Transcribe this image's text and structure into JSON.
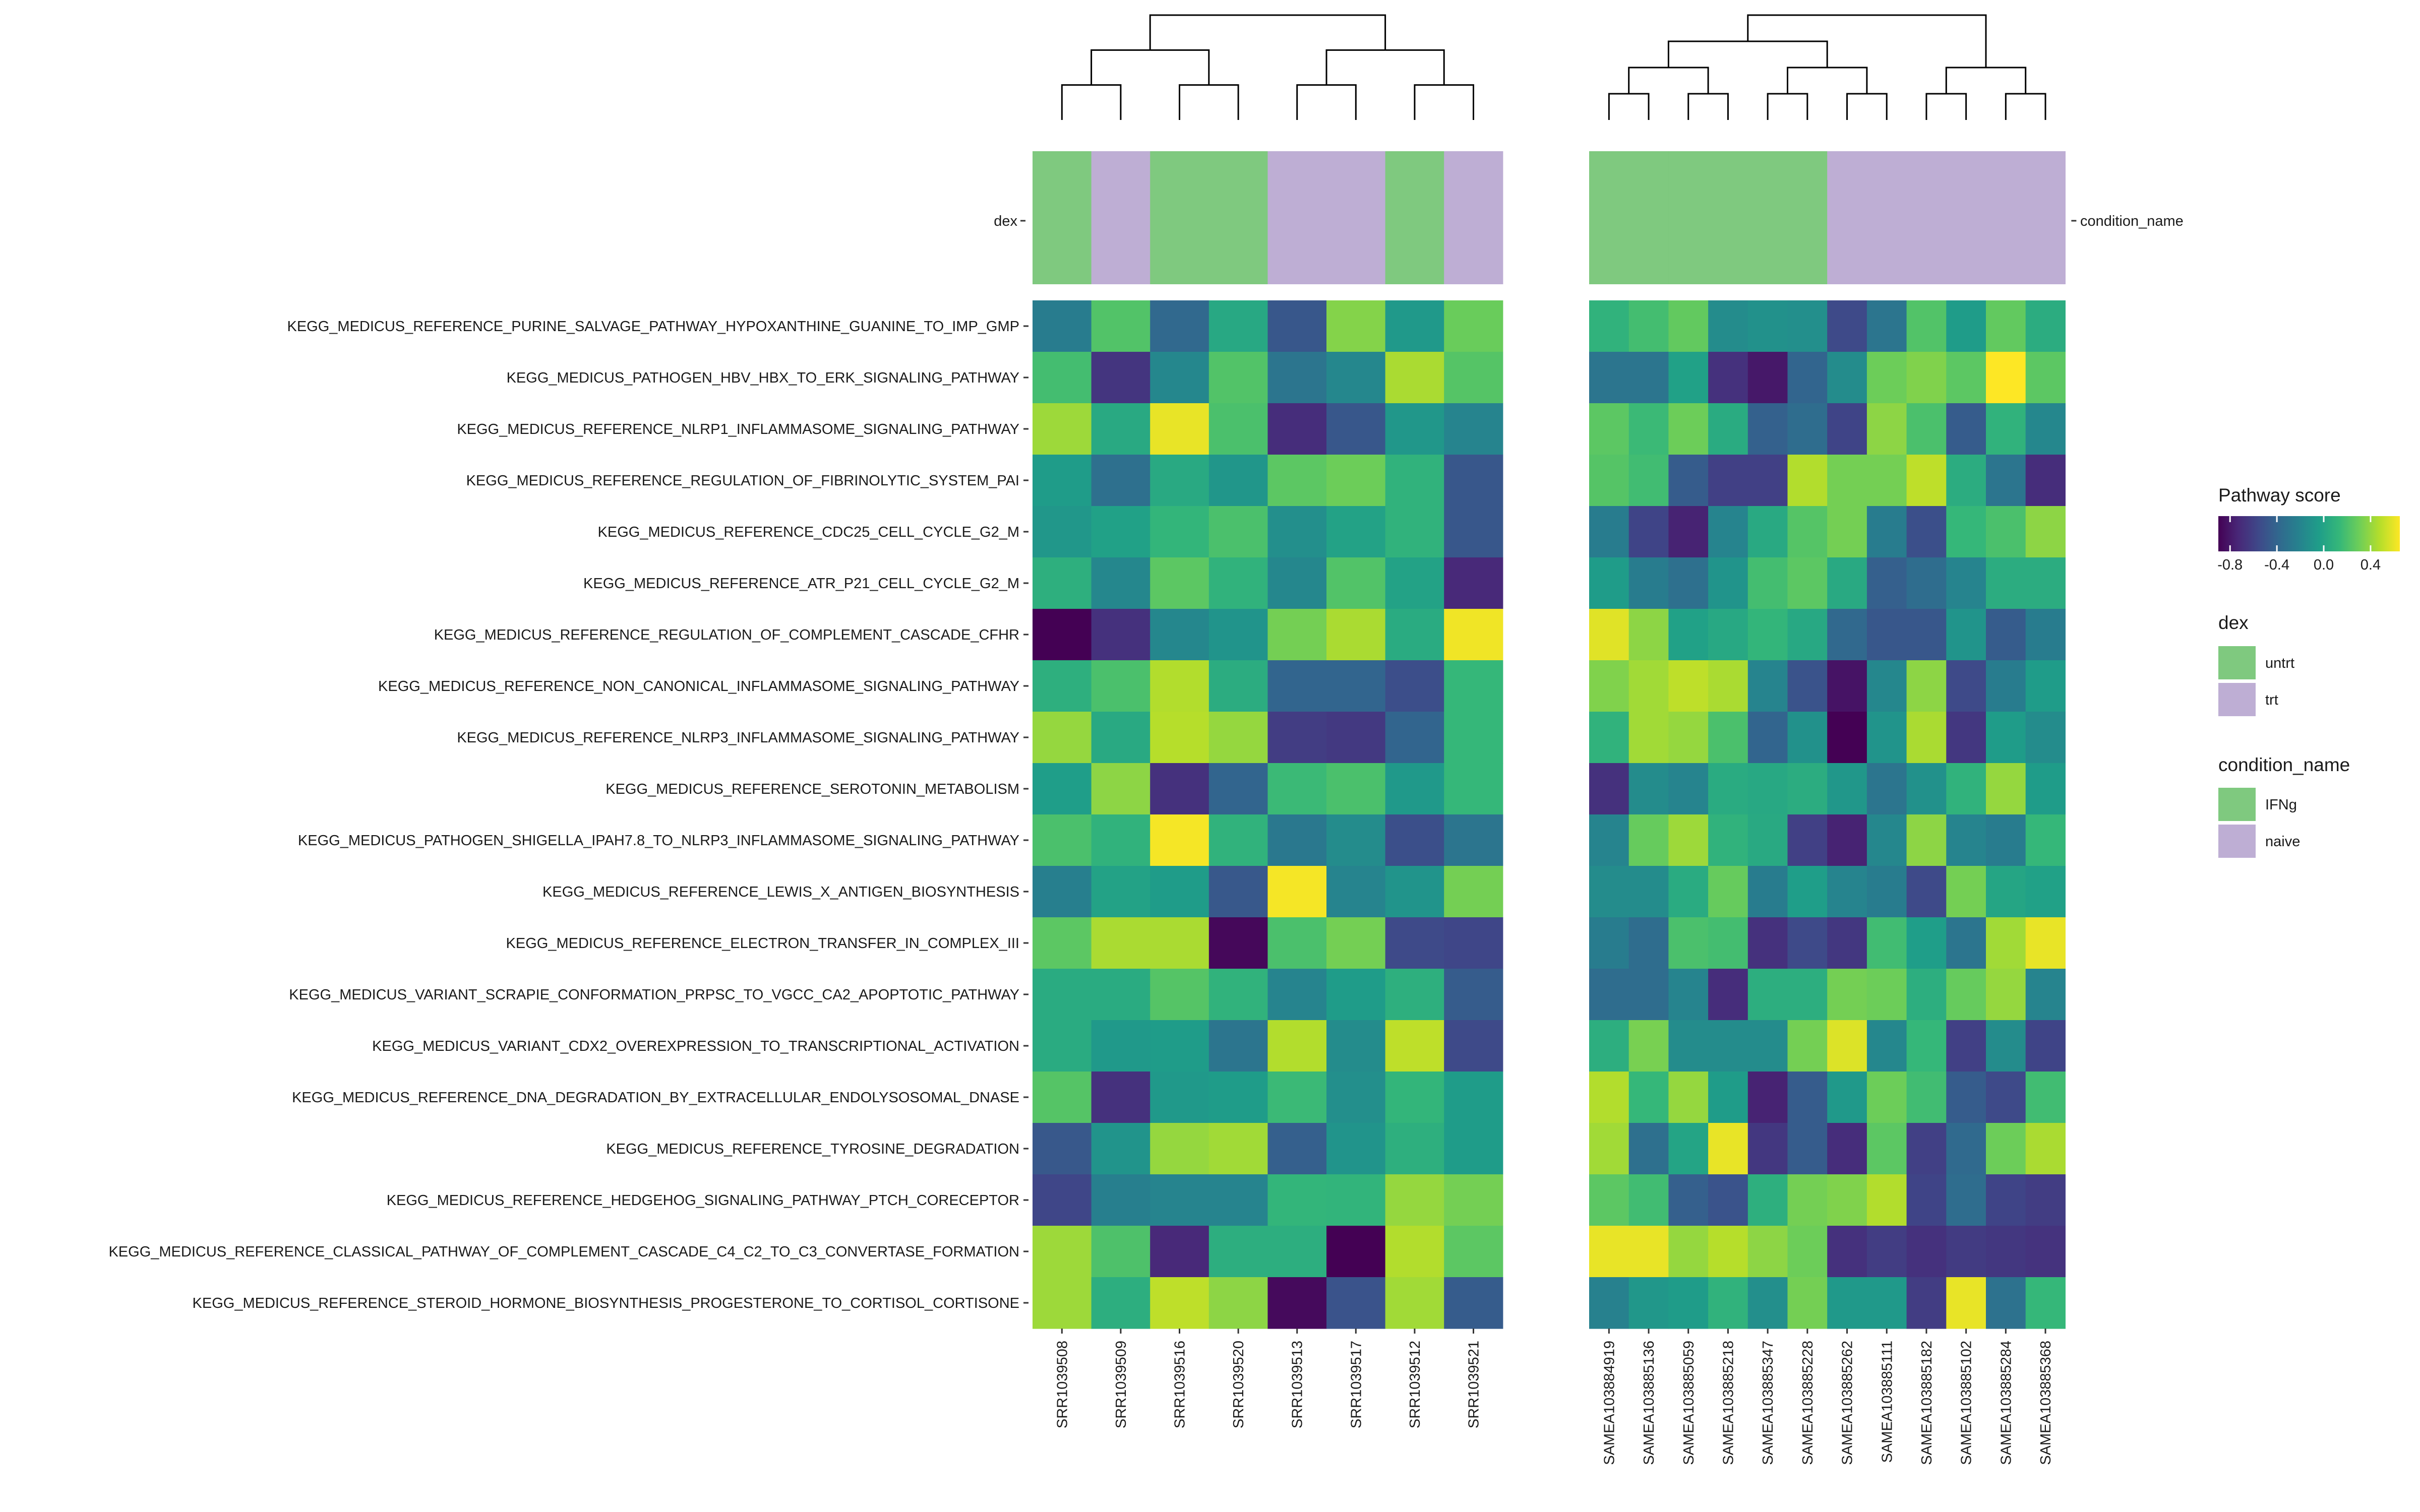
{
  "chart_data": {
    "type": "heatmap",
    "title": "",
    "value_name": "Pathway score",
    "color_scale": {
      "palette": "viridis",
      "min": -0.9,
      "max": 0.65,
      "colors": [
        "#440154",
        "#482878",
        "#3e4989",
        "#31688e",
        "#26828e",
        "#1f9e89",
        "#35b779",
        "#6ece58",
        "#b5de2b",
        "#fde725"
      ],
      "ticks": [
        -0.8,
        -0.4,
        0.0,
        0.4
      ],
      "tick_labels": [
        "-0.8",
        "-0.4",
        "0.0",
        "0.4"
      ]
    },
    "rows": [
      "KEGG_MEDICUS_REFERENCE_PURINE_SALVAGE_PATHWAY_HYPOXANTHINE_GUANINE_TO_IMP_GMP",
      "KEGG_MEDICUS_PATHOGEN_HBV_HBX_TO_ERK_SIGNALING_PATHWAY",
      "KEGG_MEDICUS_REFERENCE_NLRP1_INFLAMMASOME_SIGNALING_PATHWAY",
      "KEGG_MEDICUS_REFERENCE_REGULATION_OF_FIBRINOLYTIC_SYSTEM_PAI",
      "KEGG_MEDICUS_REFERENCE_CDC25_CELL_CYCLE_G2_M",
      "KEGG_MEDICUS_REFERENCE_ATR_P21_CELL_CYCLE_G2_M",
      "KEGG_MEDICUS_REFERENCE_REGULATION_OF_COMPLEMENT_CASCADE_CFHR",
      "KEGG_MEDICUS_REFERENCE_NON_CANONICAL_INFLAMMASOME_SIGNALING_PATHWAY",
      "KEGG_MEDICUS_REFERENCE_NLRP3_INFLAMMASOME_SIGNALING_PATHWAY",
      "KEGG_MEDICUS_REFERENCE_SEROTONIN_METABOLISM",
      "KEGG_MEDICUS_PATHOGEN_SHIGELLA_IPAH7.8_TO_NLRP3_INFLAMMASOME_SIGNALING_PATHWAY",
      "KEGG_MEDICUS_REFERENCE_LEWIS_X_ANTIGEN_BIOSYNTHESIS",
      "KEGG_MEDICUS_REFERENCE_ELECTRON_TRANSFER_IN_COMPLEX_III",
      "KEGG_MEDICUS_VARIANT_SCRAPIE_CONFORMATION_PRPSC_TO_VGCC_CA2_APOPTOTIC_PATHWAY",
      "KEGG_MEDICUS_VARIANT_CDX2_OVEREXPRESSION_TO_TRANSCRIPTIONAL_ACTIVATION",
      "KEGG_MEDICUS_REFERENCE_DNA_DEGRADATION_BY_EXTRACELLULAR_ENDOLYSOSOMAL_DNASE",
      "KEGG_MEDICUS_REFERENCE_TYROSINE_DEGRADATION",
      "KEGG_MEDICUS_REFERENCE_HEDGEHOG_SIGNALING_PATHWAY_PTCH_CORECEPTOR",
      "KEGG_MEDICUS_REFERENCE_CLASSICAL_PATHWAY_OF_COMPLEMENT_CASCADE_C4_C2_TO_C3_CONVERTASE_FORMATION",
      "KEGG_MEDICUS_REFERENCE_STEROID_HORMONE_BIOSYNTHESIS_PROGESTERONE_TO_CORTISOL_CORTISONE"
    ],
    "panels": [
      {
        "annotation_name": "dex",
        "columns": [
          "SRR1039508",
          "SRR1039509",
          "SRR1039516",
          "SRR1039520",
          "SRR1039513",
          "SRR1039517",
          "SRR1039512",
          "SRR1039521"
        ],
        "annotation_values": [
          "untrt",
          "trt",
          "untrt",
          "untrt",
          "trt",
          "trt",
          "untrt",
          "trt"
        ],
        "values": [
          [
            -0.25,
            0.22,
            -0.38,
            0.03,
            -0.48,
            0.36,
            -0.07,
            0.29
          ],
          [
            0.18,
            -0.66,
            -0.18,
            0.22,
            -0.3,
            -0.18,
            0.45,
            0.23
          ],
          [
            0.42,
            0.04,
            0.6,
            0.2,
            -0.7,
            -0.48,
            -0.08,
            -0.2
          ],
          [
            -0.05,
            -0.33,
            0.04,
            -0.09,
            0.25,
            0.3,
            0.1,
            -0.48
          ],
          [
            -0.08,
            -0.02,
            0.12,
            0.2,
            -0.13,
            -0.01,
            0.1,
            -0.48
          ],
          [
            0.08,
            -0.18,
            0.25,
            0.1,
            -0.18,
            0.22,
            -0.01,
            -0.72
          ],
          [
            -0.9,
            -0.68,
            -0.18,
            -0.1,
            0.32,
            0.45,
            0.05,
            0.62
          ],
          [
            0.08,
            0.2,
            0.47,
            0.06,
            -0.4,
            -0.4,
            -0.53,
            0.13
          ],
          [
            0.4,
            0.04,
            0.48,
            0.4,
            -0.62,
            -0.64,
            -0.4,
            0.13
          ],
          [
            -0.04,
            0.38,
            -0.68,
            -0.4,
            0.15,
            0.2,
            -0.07,
            0.13
          ],
          [
            0.2,
            0.1,
            0.63,
            0.1,
            -0.28,
            -0.15,
            -0.52,
            -0.3
          ],
          [
            -0.23,
            -0.01,
            -0.05,
            -0.47,
            0.63,
            -0.2,
            -0.1,
            0.32
          ],
          [
            0.25,
            0.45,
            0.45,
            -0.87,
            0.2,
            0.32,
            -0.55,
            -0.57
          ],
          [
            0.05,
            0.05,
            0.23,
            0.1,
            -0.2,
            -0.05,
            0.08,
            -0.45
          ],
          [
            0.05,
            -0.07,
            -0.05,
            -0.3,
            0.47,
            -0.15,
            0.5,
            -0.55
          ],
          [
            0.23,
            -0.68,
            -0.07,
            -0.05,
            0.15,
            -0.13,
            0.12,
            -0.05
          ],
          [
            -0.47,
            -0.1,
            0.4,
            0.43,
            -0.43,
            -0.1,
            0.08,
            -0.05
          ],
          [
            -0.57,
            -0.23,
            -0.2,
            -0.2,
            0.12,
            0.11,
            0.4,
            0.32
          ],
          [
            0.42,
            0.21,
            -0.72,
            0.07,
            0.07,
            -0.9,
            0.47,
            0.25
          ],
          [
            0.42,
            0.07,
            0.5,
            0.38,
            -0.86,
            -0.5,
            0.43,
            -0.45
          ]
        ]
      },
      {
        "annotation_name": "condition_name",
        "columns": [
          "SAMEA103884919",
          "SAMEA103885136",
          "SAMEA103885059",
          "SAMEA103885218",
          "SAMEA103885347",
          "SAMEA103885228",
          "SAMEA103885262",
          "SAMEA103885111",
          "SAMEA103885182",
          "SAMEA103885102",
          "SAMEA103885284",
          "SAMEA103885368"
        ],
        "annotation_values": [
          "IFNg",
          "IFNg",
          "IFNg",
          "IFNg",
          "IFNg",
          "IFNg",
          "naive",
          "naive",
          "naive",
          "naive",
          "naive",
          "naive"
        ],
        "values": [
          [
            0.1,
            0.18,
            0.27,
            -0.15,
            -0.12,
            -0.13,
            -0.55,
            -0.3,
            0.22,
            -0.05,
            0.27,
            0.06
          ],
          [
            -0.3,
            -0.3,
            -0.02,
            -0.68,
            -0.8,
            -0.4,
            -0.15,
            0.3,
            0.35,
            0.25,
            0.65,
            0.25
          ],
          [
            0.25,
            0.15,
            0.3,
            0.05,
            -0.42,
            -0.35,
            -0.58,
            0.38,
            0.2,
            -0.45,
            0.1,
            -0.18
          ],
          [
            0.23,
            0.17,
            -0.45,
            -0.6,
            -0.6,
            0.47,
            0.32,
            0.32,
            0.5,
            0.06,
            -0.3,
            -0.7
          ],
          [
            -0.25,
            -0.58,
            -0.75,
            -0.2,
            0.04,
            0.23,
            0.32,
            -0.25,
            -0.52,
            0.13,
            0.2,
            0.38
          ],
          [
            -0.05,
            -0.25,
            -0.33,
            -0.1,
            0.18,
            0.25,
            0.04,
            -0.43,
            -0.35,
            -0.2,
            0.06,
            0.06
          ],
          [
            0.58,
            0.38,
            -0.02,
            0.03,
            0.12,
            0.03,
            -0.38,
            -0.48,
            -0.48,
            -0.1,
            -0.45,
            -0.25
          ],
          [
            0.35,
            0.43,
            0.5,
            0.45,
            -0.2,
            -0.5,
            -0.82,
            -0.18,
            0.38,
            -0.55,
            -0.25,
            -0.05
          ],
          [
            0.1,
            0.43,
            0.4,
            0.2,
            -0.4,
            -0.12,
            -0.92,
            -0.1,
            0.45,
            -0.65,
            -0.05,
            -0.15
          ],
          [
            -0.68,
            -0.15,
            -0.2,
            0.05,
            0.03,
            0.06,
            -0.08,
            -0.3,
            -0.12,
            0.1,
            0.4,
            -0.05
          ],
          [
            -0.2,
            0.28,
            0.42,
            0.1,
            0.04,
            -0.6,
            -0.75,
            -0.18,
            0.38,
            -0.2,
            -0.25,
            0.13
          ],
          [
            -0.15,
            -0.15,
            0.05,
            0.28,
            -0.25,
            -0.04,
            -0.2,
            -0.25,
            -0.55,
            0.32,
            0.01,
            -0.02
          ],
          [
            -0.25,
            -0.35,
            0.2,
            0.18,
            -0.68,
            -0.55,
            -0.65,
            0.17,
            -0.04,
            -0.3,
            0.43,
            0.6
          ],
          [
            -0.35,
            -0.35,
            -0.2,
            -0.7,
            0.07,
            0.07,
            0.32,
            0.3,
            0.07,
            0.28,
            0.4,
            -0.2
          ],
          [
            0.07,
            0.33,
            -0.15,
            -0.15,
            -0.15,
            0.32,
            0.57,
            -0.18,
            0.13,
            -0.6,
            -0.15,
            -0.58
          ],
          [
            0.47,
            0.13,
            0.4,
            -0.05,
            -0.75,
            -0.45,
            -0.07,
            0.3,
            0.17,
            -0.45,
            -0.55,
            0.17
          ],
          [
            0.43,
            -0.33,
            0.0,
            0.6,
            -0.65,
            -0.45,
            -0.7,
            0.25,
            -0.6,
            -0.37,
            0.3,
            0.45
          ],
          [
            0.25,
            0.17,
            -0.43,
            -0.5,
            0.08,
            0.32,
            0.35,
            0.47,
            -0.58,
            -0.35,
            -0.58,
            -0.62
          ],
          [
            0.6,
            0.6,
            0.4,
            0.48,
            0.38,
            0.3,
            -0.68,
            -0.62,
            -0.68,
            -0.63,
            -0.65,
            -0.67
          ],
          [
            -0.22,
            -0.08,
            -0.05,
            0.1,
            -0.13,
            0.32,
            -0.07,
            -0.07,
            -0.62,
            0.6,
            -0.32,
            0.13
          ]
        ]
      }
    ],
    "legends": [
      {
        "title": "dex",
        "entries": [
          {
            "label": "untrt",
            "color": "#7fc97f"
          },
          {
            "label": "trt",
            "color": "#beaed4"
          }
        ]
      },
      {
        "title": "condition_name",
        "entries": [
          {
            "label": "IFNg",
            "color": "#7fc97f"
          },
          {
            "label": "naive",
            "color": "#beaed4"
          }
        ]
      }
    ],
    "legend_position": "right"
  }
}
